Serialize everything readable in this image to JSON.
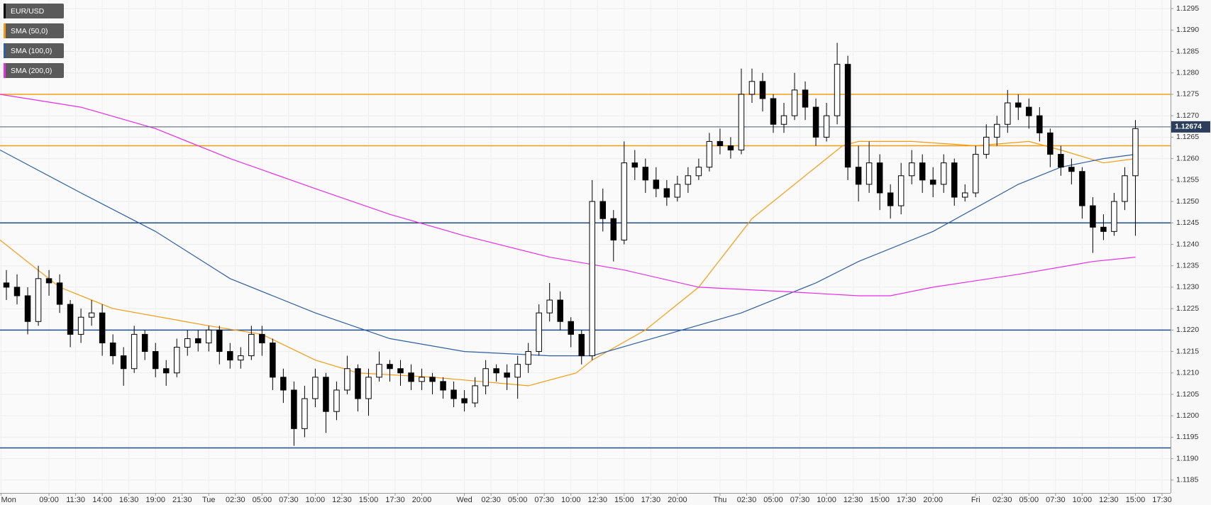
{
  "chart_data": {
    "type": "candlestick",
    "grid": true,
    "xlim": [
      4.4,
      114.3
    ],
    "ylim": [
      1.1182,
      1.1297
    ],
    "xticks": [
      {
        "value": 4.5,
        "label": "Mon"
      },
      {
        "value": 9,
        "label": "09:00"
      },
      {
        "value": 11.5,
        "label": "11:30"
      },
      {
        "value": 14,
        "label": "14:00"
      },
      {
        "value": 16.5,
        "label": "16:30"
      },
      {
        "value": 19,
        "label": "19:00"
      },
      {
        "value": 21.5,
        "label": "21:30"
      },
      {
        "value": 24,
        "label": "Tue"
      },
      {
        "value": 26.5,
        "label": "02:30"
      },
      {
        "value": 29,
        "label": "05:00"
      },
      {
        "value": 31.5,
        "label": "07:30"
      },
      {
        "value": 34,
        "label": "10:00"
      },
      {
        "value": 36.5,
        "label": "12:30"
      },
      {
        "value": 39,
        "label": "15:00"
      },
      {
        "value": 41.5,
        "label": "17:30"
      },
      {
        "value": 44,
        "label": "20:00"
      },
      {
        "value": 48,
        "label": "Wed"
      },
      {
        "value": 50.5,
        "label": "02:30"
      },
      {
        "value": 53,
        "label": "05:00"
      },
      {
        "value": 55.5,
        "label": "07:30"
      },
      {
        "value": 58,
        "label": "10:00"
      },
      {
        "value": 60.5,
        "label": "12:30"
      },
      {
        "value": 63,
        "label": "15:00"
      },
      {
        "value": 65.5,
        "label": "17:30"
      },
      {
        "value": 68,
        "label": "20:00"
      },
      {
        "value": 72,
        "label": "Thu"
      },
      {
        "value": 74.5,
        "label": "02:30"
      },
      {
        "value": 77,
        "label": "05:00"
      },
      {
        "value": 79.5,
        "label": "07:30"
      },
      {
        "value": 82,
        "label": "10:00"
      },
      {
        "value": 84.5,
        "label": "12:30"
      },
      {
        "value": 87,
        "label": "15:00"
      },
      {
        "value": 89.5,
        "label": "17:30"
      },
      {
        "value": 92,
        "label": "20:00"
      },
      {
        "value": 96,
        "label": "Fri"
      },
      {
        "value": 98.5,
        "label": "02:30"
      },
      {
        "value": 101,
        "label": "05:00"
      },
      {
        "value": 103.5,
        "label": "07:30"
      },
      {
        "value": 106,
        "label": "10:00"
      },
      {
        "value": 108.5,
        "label": "12:30"
      },
      {
        "value": 111,
        "label": "15:00"
      },
      {
        "value": 113.5,
        "label": "17:30"
      }
    ],
    "yticks": [
      1.1185,
      {
        "value": 1.119,
        "label": "1.1190"
      },
      1.1195,
      {
        "value": 1.12,
        "label": "1.1200"
      },
      1.1205,
      {
        "value": 1.121,
        "label": "1.1210"
      },
      1.1215,
      {
        "value": 1.122,
        "label": "1.1220"
      },
      1.1225,
      {
        "value": 1.123,
        "label": "1.1230"
      },
      1.1235,
      {
        "value": 1.124,
        "label": "1.1240"
      },
      1.1245,
      {
        "value": 1.125,
        "label": "1.1250"
      },
      1.1255,
      {
        "value": 1.126,
        "label": "1.1260"
      },
      1.1265,
      {
        "value": 1.127,
        "label": "1.1270"
      },
      1.1275,
      {
        "value": 1.128,
        "label": "1.1280"
      },
      1.1285,
      {
        "value": 1.129,
        "label": "1.1290"
      },
      1.1295
    ],
    "series": [
      {
        "name": "EUR/USD",
        "color": "#000000",
        "x": [
          5,
          6,
          7,
          8,
          9,
          10,
          11,
          12,
          13,
          14,
          15,
          16,
          17,
          18,
          19,
          20,
          21,
          22,
          23,
          24,
          25,
          26,
          27,
          28,
          29,
          30,
          31,
          32,
          33,
          34,
          35,
          36,
          37,
          38,
          39,
          40,
          41,
          42,
          43,
          44,
          45,
          46,
          47,
          48,
          49,
          50,
          51,
          52,
          53,
          54,
          55,
          56,
          57,
          58,
          59,
          60,
          61,
          62,
          63,
          64,
          65,
          66,
          67,
          68,
          69,
          70,
          71,
          72,
          73,
          74,
          75,
          76,
          77,
          78,
          79,
          80,
          81,
          82,
          83,
          84,
          85,
          86,
          87,
          88,
          89,
          90,
          91,
          92,
          93,
          94,
          95,
          96,
          97,
          98,
          99,
          100,
          101,
          102,
          103,
          104,
          105,
          106,
          107,
          108,
          109,
          110,
          111
        ],
        "open": [
          1.1231,
          1.123,
          1.1228,
          1.1222,
          1.1232,
          1.1231,
          1.1226,
          1.1219,
          1.1223,
          1.1224,
          1.1217,
          1.1214,
          1.1211,
          1.1219,
          1.1215,
          1.1211,
          1.121,
          1.1216,
          1.1218,
          1.1217,
          1.122,
          1.1215,
          1.1213,
          1.1214,
          1.1219,
          1.1217,
          1.1209,
          1.1206,
          1.1197,
          1.1204,
          1.1209,
          1.1201,
          1.1206,
          1.1211,
          1.1204,
          1.1209,
          1.1212,
          1.1211,
          1.121,
          1.1208,
          1.1209,
          1.1208,
          1.1206,
          1.1204,
          1.1203,
          1.1207,
          1.1211,
          1.121,
          1.1209,
          1.1212,
          1.1215,
          1.1224,
          1.1227,
          1.1222,
          1.1219,
          1.1214,
          1.125,
          1.1246,
          1.1241,
          1.1259,
          1.1258,
          1.1255,
          1.1253,
          1.1251,
          1.1254,
          1.1256,
          1.1258,
          1.1264,
          1.1263,
          1.1262,
          1.1275,
          1.1278,
          1.1274,
          1.1268,
          1.127,
          1.1276,
          1.1272,
          1.1265,
          1.127,
          1.1282,
          1.1258,
          1.1254,
          1.1259,
          1.1252,
          1.1249,
          1.1256,
          1.1259,
          1.1255,
          1.1254,
          1.1259,
          1.1251,
          1.1252,
          1.1261,
          1.1265,
          1.1268,
          1.1273,
          1.1272,
          1.127,
          1.1266,
          1.1261,
          1.1258,
          1.1257,
          1.1249,
          1.1244,
          1.1243,
          1.125,
          1.1256
        ],
        "high": [
          1.1234,
          1.1233,
          1.123,
          1.1235,
          1.1234,
          1.1233,
          1.1227,
          1.1225,
          1.1227,
          1.1226,
          1.1219,
          1.1216,
          1.1221,
          1.122,
          1.1217,
          1.1213,
          1.1218,
          1.122,
          1.122,
          1.1221,
          1.1221,
          1.1217,
          1.1216,
          1.1221,
          1.1221,
          1.1218,
          1.1211,
          1.1208,
          1.1207,
          1.1211,
          1.121,
          1.1208,
          1.1214,
          1.1212,
          1.1211,
          1.1215,
          1.1213,
          1.1213,
          1.1212,
          1.1211,
          1.121,
          1.1209,
          1.1208,
          1.1206,
          1.1209,
          1.1213,
          1.1212,
          1.1212,
          1.1214,
          1.1217,
          1.1226,
          1.1231,
          1.1229,
          1.1223,
          1.122,
          1.1255,
          1.1253,
          1.1248,
          1.1264,
          1.1262,
          1.126,
          1.1258,
          1.1255,
          1.1256,
          1.1258,
          1.126,
          1.1266,
          1.1267,
          1.1265,
          1.1281,
          1.1281,
          1.128,
          1.1275,
          1.1273,
          1.128,
          1.1278,
          1.1274,
          1.1273,
          1.1287,
          1.1284,
          1.1263,
          1.1264,
          1.1261,
          1.1254,
          1.1259,
          1.1262,
          1.1261,
          1.1258,
          1.1261,
          1.126,
          1.1254,
          1.1263,
          1.1268,
          1.127,
          1.1276,
          1.1275,
          1.1274,
          1.1272,
          1.1267,
          1.1263,
          1.126,
          1.1258,
          1.1251,
          1.1247,
          1.1252,
          1.1258,
          1.1269
        ],
        "low": [
          1.1227,
          1.1226,
          1.1219,
          1.1221,
          1.1228,
          1.1224,
          1.1216,
          1.1217,
          1.1221,
          1.1214,
          1.1212,
          1.1207,
          1.121,
          1.1213,
          1.1209,
          1.1207,
          1.1209,
          1.1214,
          1.1215,
          1.1215,
          1.1212,
          1.1211,
          1.1211,
          1.1213,
          1.1214,
          1.1206,
          1.1203,
          1.1193,
          1.1195,
          1.1202,
          1.1196,
          1.1199,
          1.1205,
          1.1201,
          1.12,
          1.1208,
          1.1208,
          1.1207,
          1.1206,
          1.1206,
          1.1205,
          1.1204,
          1.1202,
          1.1201,
          1.1202,
          1.1205,
          1.1208,
          1.1206,
          1.1204,
          1.121,
          1.1214,
          1.1222,
          1.122,
          1.1216,
          1.1212,
          1.1213,
          1.1243,
          1.1236,
          1.124,
          1.1255,
          1.1252,
          1.1251,
          1.1249,
          1.125,
          1.1252,
          1.1255,
          1.1257,
          1.1261,
          1.126,
          1.1261,
          1.1273,
          1.1271,
          1.1266,
          1.1266,
          1.1269,
          1.1269,
          1.1263,
          1.1264,
          1.1268,
          1.1255,
          1.125,
          1.1252,
          1.1248,
          1.1246,
          1.1247,
          1.1254,
          1.1252,
          1.1251,
          1.1252,
          1.1249,
          1.125,
          1.1251,
          1.126,
          1.1263,
          1.1266,
          1.1269,
          1.1267,
          1.1264,
          1.1258,
          1.1256,
          1.1254,
          1.1246,
          1.1238,
          1.1241,
          1.1242,
          1.1248,
          1.1242
        ],
        "close": [
          1.123,
          1.1228,
          1.1222,
          1.1232,
          1.1231,
          1.1226,
          1.1219,
          1.1223,
          1.1224,
          1.1217,
          1.1214,
          1.1211,
          1.1219,
          1.1215,
          1.1211,
          1.121,
          1.1216,
          1.1218,
          1.1217,
          1.122,
          1.1215,
          1.1213,
          1.1214,
          1.1219,
          1.1217,
          1.1209,
          1.1206,
          1.1197,
          1.1204,
          1.1209,
          1.1201,
          1.1206,
          1.1211,
          1.1204,
          1.1209,
          1.1212,
          1.1211,
          1.121,
          1.1208,
          1.1209,
          1.1208,
          1.1206,
          1.1204,
          1.1203,
          1.1207,
          1.1211,
          1.121,
          1.1209,
          1.1212,
          1.1215,
          1.1224,
          1.1227,
          1.1222,
          1.1219,
          1.1214,
          1.125,
          1.1246,
          1.1241,
          1.1259,
          1.1258,
          1.1255,
          1.1253,
          1.1251,
          1.1254,
          1.1256,
          1.1258,
          1.1264,
          1.1263,
          1.1262,
          1.1275,
          1.1278,
          1.1274,
          1.1268,
          1.127,
          1.1276,
          1.1272,
          1.1265,
          1.127,
          1.1282,
          1.1258,
          1.1254,
          1.1259,
          1.1252,
          1.1249,
          1.1256,
          1.1259,
          1.1255,
          1.1254,
          1.1259,
          1.1251,
          1.1252,
          1.1261,
          1.1265,
          1.1268,
          1.1273,
          1.1272,
          1.127,
          1.1266,
          1.1261,
          1.1258,
          1.1257,
          1.1249,
          1.1244,
          1.1243,
          1.125,
          1.1256,
          1.1267
        ]
      }
    ],
    "overlays": [
      {
        "name": "SMA (50,0)",
        "color": "#f39c12",
        "x": [
          4.4,
          10,
          15,
          24,
          29,
          34,
          38,
          45,
          54,
          58.5,
          60,
          65,
          70,
          75,
          80.5,
          83.5,
          85,
          90,
          96,
          101,
          104,
          108,
          111
        ],
        "values": [
          1.1241,
          1.123,
          1.1225,
          1.1221,
          1.1219,
          1.1213,
          1.121,
          1.1209,
          1.1207,
          1.121,
          1.1213,
          1.122,
          1.123,
          1.1246,
          1.1257,
          1.1263,
          1.1264,
          1.1264,
          1.1263,
          1.1264,
          1.1262,
          1.1259,
          1.126
        ]
      },
      {
        "name": "SMA (100,0)",
        "color": "#2d5fa3",
        "x": [
          4.4,
          12,
          19,
          26,
          34,
          41,
          48,
          56,
          60,
          67,
          74,
          81,
          85,
          92,
          100,
          104,
          108,
          111
        ],
        "values": [
          1.1262,
          1.1252,
          1.1243,
          1.1232,
          1.1224,
          1.1218,
          1.1215,
          1.1214,
          1.1214,
          1.1219,
          1.1224,
          1.1231,
          1.1236,
          1.1243,
          1.1254,
          1.1258,
          1.126,
          1.1261
        ]
      },
      {
        "name": "SMA (200,0)",
        "color": "#e62ee6",
        "x": [
          4.4,
          12,
          19,
          26,
          34,
          41,
          48,
          56,
          63,
          70,
          78,
          85,
          88,
          92,
          100,
          107,
          111
        ],
        "values": [
          1.1275,
          1.1272,
          1.1267,
          1.126,
          1.1253,
          1.1247,
          1.1242,
          1.1237,
          1.1234,
          1.123,
          1.1229,
          1.1228,
          1.1228,
          1.123,
          1.1233,
          1.1236,
          1.1237
        ]
      }
    ],
    "levels": [
      {
        "value": 1.1275,
        "color": "#f39c12"
      },
      {
        "value": 1.1263,
        "color": "#f39c12"
      },
      {
        "value": 1.1245,
        "color": "#1f4e8c"
      },
      {
        "value": 1.122,
        "color": "#1f4e8c"
      },
      {
        "value": 1.11925,
        "color": "#1f4e8c"
      }
    ],
    "current_price": {
      "value": 1.12674,
      "color": "#4a5b70"
    }
  }
}
